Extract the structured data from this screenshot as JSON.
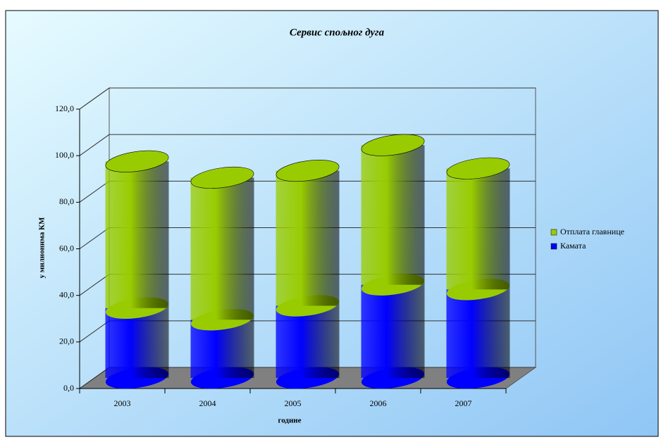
{
  "chart_data": {
    "type": "bar3d_stacked_cylinder",
    "title": "Сервис спољног дуга",
    "y_label": "у милионима КМ",
    "x_label": "године",
    "categories": [
      "2003",
      "2004",
      "2005",
      "2006",
      "2007"
    ],
    "series": [
      {
        "name": "Отплата главнице",
        "color": "#99cc00",
        "values": [
          63,
          61,
          58,
          60,
          52
        ]
      },
      {
        "name": "Камата",
        "color": "#0000ff",
        "values": [
          30,
          25,
          31,
          40,
          38
        ]
      }
    ],
    "ylim": [
      0,
      120
    ],
    "yticks": [
      {
        "value": 0,
        "label": "0,0"
      },
      {
        "value": 20,
        "label": "20,0"
      },
      {
        "value": 40,
        "label": "40,0"
      },
      {
        "value": 60,
        "label": "60,0"
      },
      {
        "value": 80,
        "label": "80,0"
      },
      {
        "value": 100,
        "label": "100,0"
      },
      {
        "value": 120,
        "label": "120,0"
      }
    ],
    "grid": true,
    "legend": "right"
  }
}
